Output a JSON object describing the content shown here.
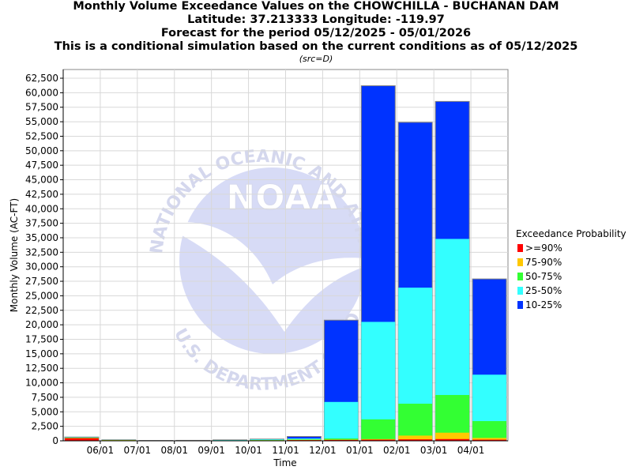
{
  "chart_data": {
    "type": "bar",
    "stacked": true,
    "title_lines": [
      "Monthly Volume Exceedance Values on the CHOWCHILLA - BUCHANAN DAM",
      "Latitude: 37.213333 Longitude: -119.97",
      "Forecast for the period 05/12/2025 - 05/01/2026",
      "This is a conditional simulation based on the current conditions as of 05/12/2025"
    ],
    "subtitle": "(src=D)",
    "xlabel": "Time",
    "ylabel": "Monthly Volume (AC-FT)",
    "ylim": [
      0,
      64000
    ],
    "yticks": [
      0,
      2500,
      5000,
      7500,
      10000,
      12500,
      15000,
      17500,
      20000,
      22500,
      25000,
      27500,
      30000,
      32500,
      35000,
      37500,
      40000,
      42500,
      45000,
      47500,
      50000,
      52500,
      55000,
      57500,
      60000,
      62500
    ],
    "ytick_labels": [
      "0",
      "2,500",
      "5,000",
      "7,500",
      "10,000",
      "12,500",
      "15,000",
      "17,500",
      "20,000",
      "22,500",
      "25,000",
      "27,500",
      "30,000",
      "32,500",
      "35,000",
      "37,500",
      "40,000",
      "42,500",
      "45,000",
      "47,500",
      "50,000",
      "52,500",
      "55,000",
      "57,500",
      "60,000",
      "62,500"
    ],
    "xtick_labels": [
      "06/01",
      "07/01",
      "08/01",
      "09/01",
      "10/01",
      "11/01",
      "12/01",
      "01/01",
      "02/01",
      "03/01",
      "04/01"
    ],
    "periods": [
      "05/2025",
      "06/2025",
      "07/2025",
      "08/2025",
      "09/2025",
      "10/2025",
      "11/2025",
      "12/2025",
      "01/2026",
      "02/2026",
      "03/2026",
      "04/2026"
    ],
    "grid": true,
    "legend_title": "Exceedance Probability",
    "legend_position": "right",
    "series": [
      {
        "name": ">=90%",
        "color": "#ff0000",
        "cumulative": [
          450,
          80,
          20,
          10,
          30,
          60,
          120,
          150,
          200,
          250,
          300,
          200
        ]
      },
      {
        "name": "75-90%",
        "color": "#ffc800",
        "cumulative": [
          500,
          100,
          30,
          20,
          50,
          100,
          180,
          200,
          300,
          900,
          1400,
          500
        ]
      },
      {
        "name": "50-75%",
        "color": "#33ff33",
        "cumulative": [
          550,
          130,
          40,
          40,
          80,
          150,
          250,
          400,
          3700,
          6400,
          7900,
          3400
        ]
      },
      {
        "name": "25-50%",
        "color": "#33ffff",
        "cumulative": [
          600,
          150,
          50,
          60,
          120,
          250,
          400,
          6700,
          20500,
          26400,
          34800,
          11400
        ]
      },
      {
        "name": "10-25%",
        "color": "#0033ff",
        "cumulative": [
          650,
          170,
          60,
          80,
          160,
          300,
          750,
          20800,
          61200,
          54900,
          58500,
          27900
        ]
      }
    ]
  },
  "watermark": {
    "logo_text": "NOAA",
    "ring_top": "NATIONAL OCEANIC AND ATMOSPHERIC",
    "ring_bottom": "U.S. DEPARTMENT OF COMMERCE"
  }
}
